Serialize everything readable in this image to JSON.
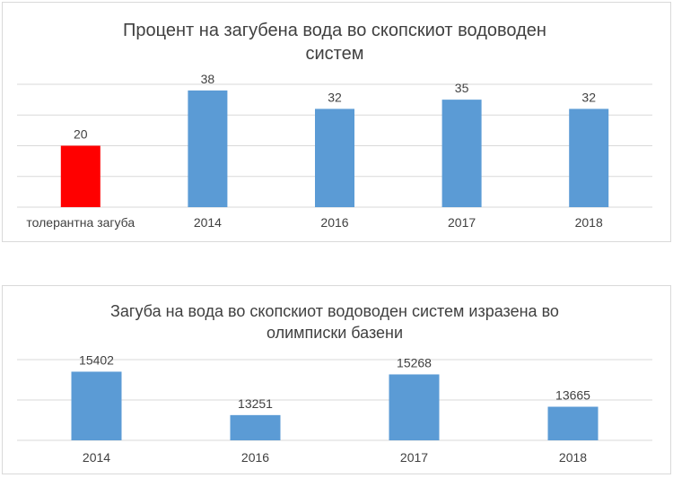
{
  "chart_data": [
    {
      "type": "bar",
      "title_lines": [
        "Процент на загубена вода во скопскиот водоводен",
        "систем"
      ],
      "categories": [
        "толерантна загуба",
        "2014",
        "2016",
        "2017",
        "2018"
      ],
      "values": [
        20,
        38,
        32,
        35,
        32
      ],
      "bar_colors": [
        "#ff0000",
        "#5b9bd5",
        "#5b9bd5",
        "#5b9bd5",
        "#5b9bd5"
      ],
      "ylim": [
        0,
        40
      ],
      "grid": true,
      "y_axis_labels": false,
      "xlabel": "",
      "ylabel": ""
    },
    {
      "type": "bar",
      "title_lines": [
        "Загуба на вода во скопскиот водоводен систем изразена во",
        "олимписки базени"
      ],
      "categories": [
        "2014",
        "2016",
        "2017",
        "2018"
      ],
      "values": [
        15402,
        13251,
        15268,
        13665
      ],
      "bar_colors": [
        "#5b9bd5",
        "#5b9bd5",
        "#5b9bd5",
        "#5b9bd5"
      ],
      "ylim": [
        12000,
        16000
      ],
      "grid": true,
      "y_axis_labels": false,
      "xlabel": "",
      "ylabel": ""
    }
  ],
  "colors": {
    "grid": "#d9d9d9",
    "title": "#404040",
    "label": "#404040",
    "border": "#d9d9d9"
  }
}
